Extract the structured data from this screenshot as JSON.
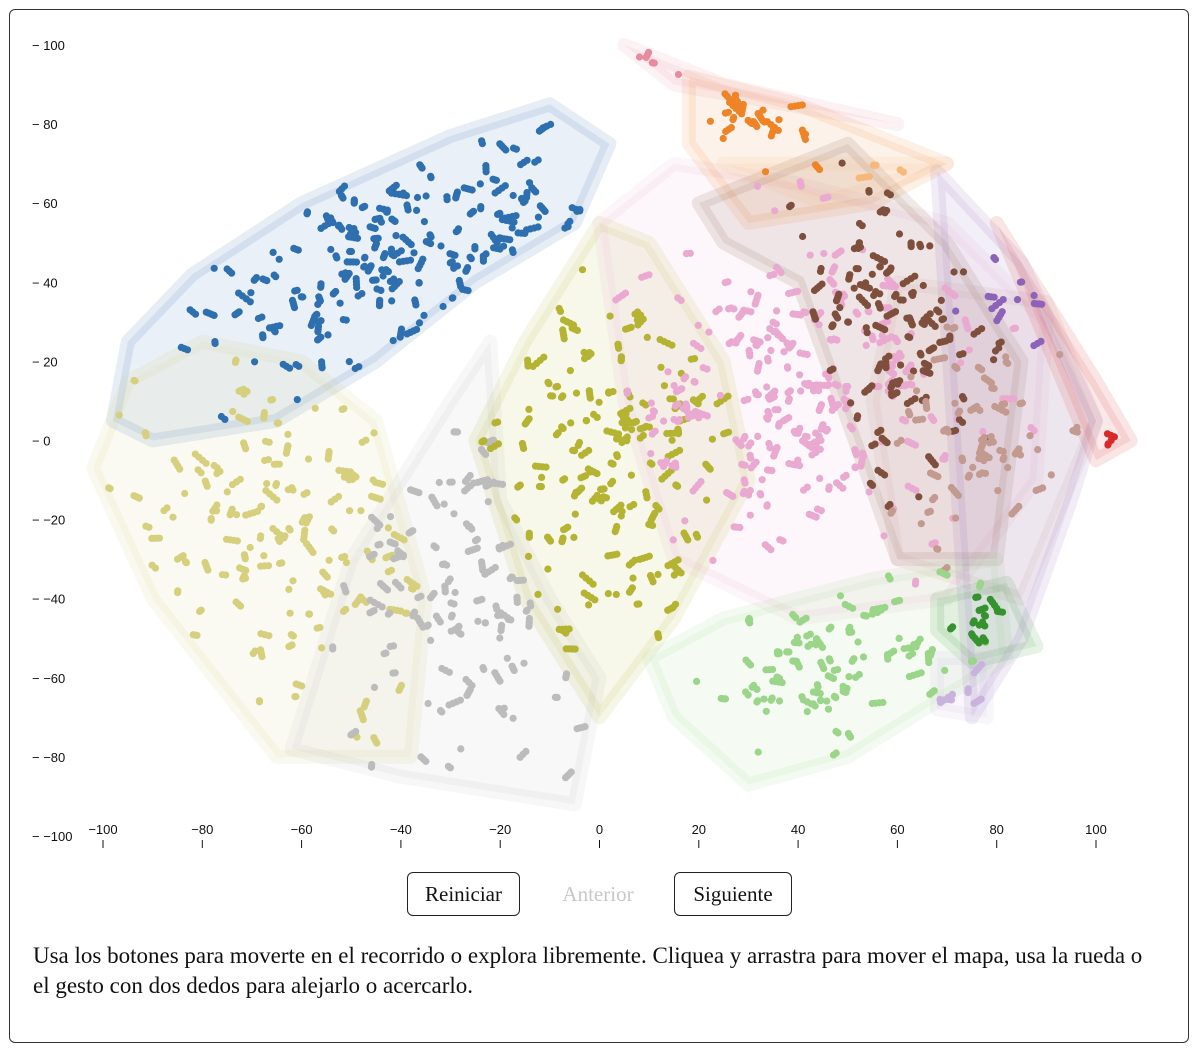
{
  "controls": {
    "reset_label": "Reiniciar",
    "prev_label": "Anterior",
    "next_label": "Siguiente"
  },
  "instructions": "Usa los botones para moverte en el recorrido o explora libremente. Cliquea y arrastra para mover el mapa, usa la rueda o el gesto con dos dedos para alejarlo o acercarlo.",
  "chart_data": {
    "type": "scatter",
    "xlim": [
      -100,
      105
    ],
    "ylim": [
      -100,
      100
    ],
    "xticks": [
      -100,
      -80,
      -60,
      -40,
      -20,
      0,
      20,
      40,
      60,
      80,
      100
    ],
    "yticks": [
      -100,
      -80,
      -60,
      -40,
      -20,
      0,
      20,
      40,
      60,
      80,
      100
    ],
    "xtick_labels": [
      "−100",
      "−80",
      "−60",
      "−40",
      "−20",
      "0",
      "20",
      "40",
      "60",
      "80",
      "100"
    ],
    "ytick_labels": [
      "− −100",
      "− −80",
      "− −60",
      "− −40",
      "− −20",
      "− 0",
      "− 20",
      "− 40",
      "− 60",
      "− 80",
      "− 100"
    ],
    "grid": false,
    "clusters": [
      {
        "color": "#2e6fb0",
        "hull": [
          [
            -98,
            5
          ],
          [
            -95,
            25
          ],
          [
            -82,
            42
          ],
          [
            -60,
            60
          ],
          [
            -30,
            77
          ],
          [
            -10,
            85
          ],
          [
            2,
            75
          ],
          [
            -5,
            55
          ],
          [
            -25,
            40
          ],
          [
            -45,
            20
          ],
          [
            -65,
            5
          ],
          [
            -90,
            0
          ]
        ],
        "center": [
          -40,
          45
        ],
        "spread": [
          26,
          14
        ],
        "tilt": 0.38,
        "count": 430
      },
      {
        "color": "#d6d07e",
        "hull": [
          [
            -102,
            -7
          ],
          [
            -95,
            15
          ],
          [
            -80,
            25
          ],
          [
            -60,
            20
          ],
          [
            -45,
            5
          ],
          [
            -35,
            -40
          ],
          [
            -38,
            -80
          ],
          [
            -65,
            -80
          ],
          [
            -90,
            -40
          ]
        ],
        "center": [
          -65,
          -25
        ],
        "spread": [
          17,
          24
        ],
        "tilt": 0,
        "count": 320
      },
      {
        "color": "#bcbcbc",
        "hull": [
          [
            -62,
            -78
          ],
          [
            -50,
            -30
          ],
          [
            -30,
            10
          ],
          [
            -22,
            25
          ],
          [
            -20,
            -15
          ],
          [
            -10,
            -40
          ],
          [
            0,
            -60
          ],
          [
            -5,
            -92
          ],
          [
            -40,
            -85
          ]
        ],
        "center": [
          -30,
          -40
        ],
        "spread": [
          13,
          22
        ],
        "tilt": 0,
        "count": 260
      },
      {
        "color": "#b5b332",
        "hull": [
          [
            -25,
            0
          ],
          [
            -15,
            25
          ],
          [
            0,
            55
          ],
          [
            10,
            50
          ],
          [
            25,
            20
          ],
          [
            30,
            -10
          ],
          [
            15,
            -45
          ],
          [
            0,
            -70
          ],
          [
            -15,
            -40
          ]
        ],
        "center": [
          5,
          -5
        ],
        "spread": [
          12,
          22
        ],
        "tilt": 0,
        "count": 360
      },
      {
        "color": "#e9a9d0",
        "hull": [
          [
            0,
            55
          ],
          [
            15,
            70
          ],
          [
            40,
            65
          ],
          [
            70,
            55
          ],
          [
            90,
            30
          ],
          [
            88,
            -10
          ],
          [
            70,
            -40
          ],
          [
            40,
            -45
          ],
          [
            15,
            -30
          ],
          [
            5,
            10
          ]
        ],
        "center": [
          40,
          10
        ],
        "spread": [
          20,
          20
        ],
        "tilt": 0,
        "count": 520
      },
      {
        "color": "#ee8426",
        "hull": [
          [
            18,
            92
          ],
          [
            40,
            85
          ],
          [
            70,
            70
          ],
          [
            55,
            60
          ],
          [
            30,
            55
          ],
          [
            18,
            75
          ]
        ],
        "center": [
          30,
          78
        ],
        "spread": [
          8,
          7
        ],
        "tilt": 0,
        "count": 60
      },
      {
        "color": "#7f4f3d",
        "hull": [
          [
            20,
            60
          ],
          [
            50,
            75
          ],
          [
            70,
            50
          ],
          [
            85,
            20
          ],
          [
            80,
            -30
          ],
          [
            60,
            -30
          ],
          [
            40,
            40
          ],
          [
            25,
            50
          ]
        ],
        "center": [
          60,
          30
        ],
        "spread": [
          12,
          22
        ],
        "tilt": 0,
        "count": 230
      },
      {
        "color": "#c29a90",
        "hull": [
          [
            60,
            40
          ],
          [
            90,
            35
          ],
          [
            100,
            5
          ],
          [
            85,
            -40
          ],
          [
            60,
            -30
          ],
          [
            55,
            10
          ]
        ],
        "center": [
          78,
          5
        ],
        "spread": [
          10,
          15
        ],
        "tilt": 0,
        "count": 140
      },
      {
        "color": "#9bd58a",
        "hull": [
          [
            10,
            -55
          ],
          [
            25,
            -45
          ],
          [
            55,
            -35
          ],
          [
            80,
            -30
          ],
          [
            82,
            -55
          ],
          [
            50,
            -80
          ],
          [
            30,
            -87
          ],
          [
            15,
            -70
          ]
        ],
        "center": [
          45,
          -58
        ],
        "spread": [
          17,
          10
        ],
        "tilt": 0,
        "count": 200
      },
      {
        "color": "#35922f",
        "hull": [
          [
            68,
            -40
          ],
          [
            82,
            -36
          ],
          [
            88,
            -52
          ],
          [
            75,
            -56
          ],
          [
            68,
            -48
          ]
        ],
        "center": [
          77,
          -47
        ],
        "spread": [
          4,
          4
        ],
        "tilt": 0,
        "count": 30
      },
      {
        "color": "#8c63b9",
        "hull": [
          [
            68,
            68
          ],
          [
            85,
            45
          ],
          [
            100,
            5
          ],
          [
            95,
            -15
          ],
          [
            85,
            -50
          ],
          [
            75,
            -70
          ]
        ],
        "center": [
          85,
          35
        ],
        "spread": [
          5,
          6
        ],
        "tilt": 0,
        "count": 25
      },
      {
        "color": "#c9b2dc",
        "hull": [
          [
            68,
            -55
          ],
          [
            78,
            -55
          ],
          [
            78,
            -70
          ],
          [
            68,
            -68
          ]
        ],
        "center": [
          73,
          -64
        ],
        "spread": [
          3,
          4
        ],
        "tilt": 0,
        "count": 20
      },
      {
        "color": "#d92a2a",
        "hull": [
          [
            80,
            55
          ],
          [
            100,
            15
          ],
          [
            107,
            0
          ],
          [
            100,
            -5
          ],
          [
            90,
            25
          ]
        ],
        "center": [
          103,
          0
        ],
        "spread": [
          1.5,
          1
        ],
        "tilt": 0,
        "count": 6
      },
      {
        "color": "#f7b87b",
        "hull": [
          [
            25,
            70
          ],
          [
            45,
            60
          ],
          [
            70,
            70
          ]
        ],
        "center": [
          60,
          66
        ],
        "spread": [
          8,
          4
        ],
        "tilt": 0,
        "count": 10
      },
      {
        "color": "#e98aa0",
        "hull": [
          [
            5,
            100
          ],
          [
            15,
            90
          ],
          [
            60,
            80
          ],
          [
            25,
            90
          ]
        ],
        "center": [
          9,
          95
        ],
        "spread": [
          3,
          3
        ],
        "tilt": 0,
        "count": 8
      }
    ]
  }
}
